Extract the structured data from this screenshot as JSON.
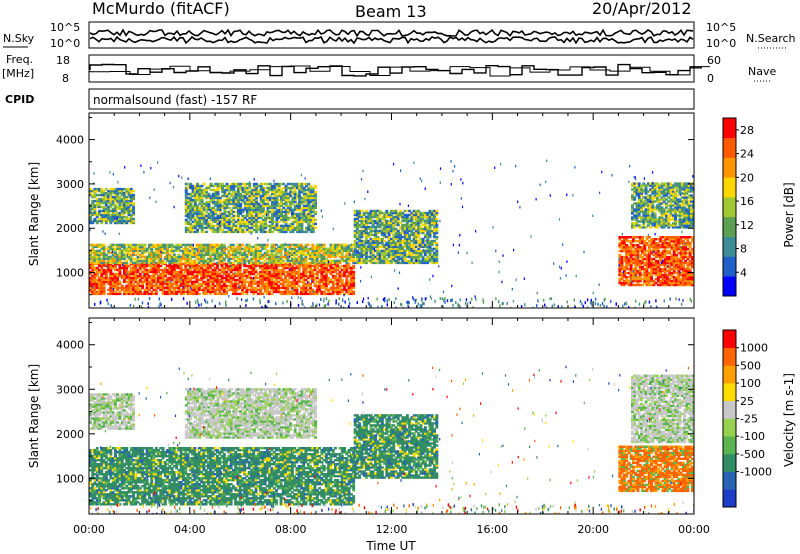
{
  "header": {
    "station": "McMurdo (fitACF)",
    "beam": "Beam 13",
    "date": "20/Apr/2012"
  },
  "noise_panel": {
    "left_label": "N.Sky",
    "right_label": "N.Search",
    "left_ticks": [
      "10^5",
      "10^0"
    ],
    "right_ticks": [
      "10^5",
      "10^0"
    ]
  },
  "freq_panel": {
    "left_label_line1": "Freq.",
    "left_label_line2": "[MHz]",
    "left_ticks": [
      "18",
      "8"
    ],
    "right_ticks": [
      "60",
      "0"
    ],
    "right_label": "Nave"
  },
  "cpid_panel": {
    "label": "CPID",
    "text": "normalsound (fast) -157 RF"
  },
  "chart_data": [
    {
      "type": "heatmap",
      "panel": "power",
      "ylabel": "Slant Range [km]",
      "xlabel": "",
      "yticks": [
        "1000",
        "2000",
        "3000",
        "4000"
      ],
      "ylim": [
        200,
        4600
      ],
      "xlim_hours": [
        0,
        24
      ],
      "colorbar": {
        "label": "Power [dB]",
        "ticks": [
          "4",
          "8",
          "12",
          "16",
          "20",
          "24",
          "28"
        ],
        "range": [
          0,
          30
        ],
        "colors": [
          "#0000ff",
          "#1e5fc8",
          "#3c8c96",
          "#5aa050",
          "#a0c832",
          "#ffd700",
          "#ff9600",
          "#ff5a00",
          "#ff0000"
        ]
      },
      "regions": [
        {
          "t0": 0.0,
          "t1": 10.5,
          "r0": 500,
          "r1": 1200,
          "level": "high"
        },
        {
          "t0": 0.0,
          "t1": 10.5,
          "r0": 1200,
          "r1": 1650,
          "level": "mid"
        },
        {
          "t0": 0.0,
          "t1": 1.8,
          "r0": 2100,
          "r1": 2900,
          "level": "mix"
        },
        {
          "t0": 3.8,
          "t1": 9.0,
          "r0": 1900,
          "r1": 3000,
          "level": "mix"
        },
        {
          "t0": 10.5,
          "t1": 13.8,
          "r0": 1200,
          "r1": 2400,
          "level": "mix"
        },
        {
          "t0": 21.0,
          "t1": 24.0,
          "r0": 700,
          "r1": 1800,
          "level": "high"
        },
        {
          "t0": 21.5,
          "t1": 24.0,
          "r0": 2000,
          "r1": 3000,
          "level": "mix"
        }
      ]
    },
    {
      "type": "heatmap",
      "panel": "velocity",
      "ylabel": "Slant Range [km]",
      "xlabel": "Time UT",
      "xticks": [
        "00:00",
        "04:00",
        "08:00",
        "12:00",
        "16:00",
        "20:00",
        "00:00"
      ],
      "yticks": [
        "1000",
        "2000",
        "3000",
        "4000"
      ],
      "ylim": [
        200,
        4600
      ],
      "xlim_hours": [
        0,
        24
      ],
      "colorbar": {
        "label": "Velocity [m s-1]",
        "ticks": [
          "1000",
          "500",
          "100",
          "25",
          "-25",
          "-100",
          "-500",
          "-1000"
        ],
        "colors": [
          "#1e3cc8",
          "#2864b4",
          "#328c64",
          "#5ab450",
          "#96d250",
          "#c8c8c8",
          "#ffdc00",
          "#ffa000",
          "#ff6400",
          "#ff0000"
        ]
      },
      "regions": [
        {
          "t0": 0.0,
          "t1": 10.5,
          "r0": 400,
          "r1": 1700,
          "level": "green"
        },
        {
          "t0": 0.0,
          "t1": 1.8,
          "r0": 2100,
          "r1": 2900,
          "level": "grey"
        },
        {
          "t0": 3.8,
          "t1": 9.0,
          "r0": 1900,
          "r1": 3000,
          "level": "grey"
        },
        {
          "t0": 10.5,
          "t1": 13.8,
          "r0": 1000,
          "r1": 2400,
          "level": "green"
        },
        {
          "t0": 21.0,
          "t1": 24.0,
          "r0": 700,
          "r1": 1700,
          "level": "orange"
        },
        {
          "t0": 21.5,
          "t1": 24.0,
          "r0": 1800,
          "r1": 3300,
          "level": "grey"
        }
      ]
    }
  ]
}
